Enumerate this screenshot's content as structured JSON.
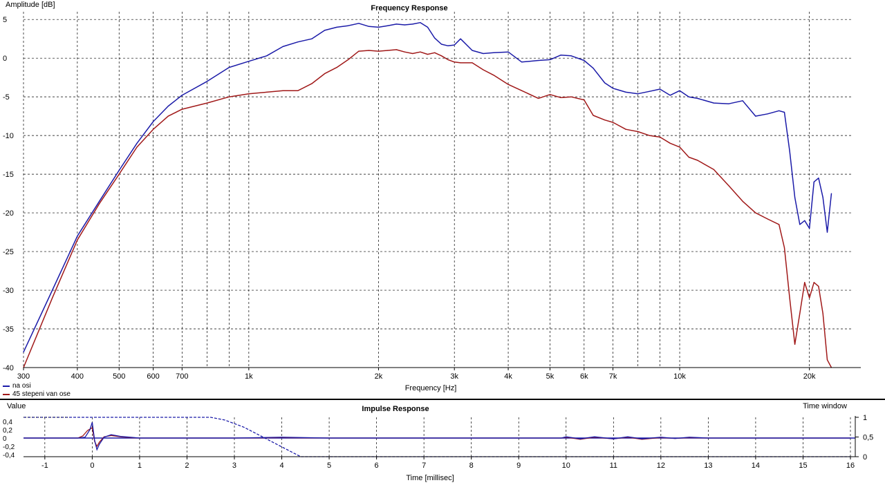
{
  "frequency_chart": {
    "title": "Frequency Response",
    "ylabel": "Amplitude [dB]",
    "xlabel": "Frequency [Hz]",
    "colors": {
      "grid": "#000000",
      "series_0": "#1a1aa8",
      "series_1": "#a01818"
    }
  },
  "impulse_chart": {
    "title": "Impulse Response",
    "ylabel": "Value",
    "xlabel": "Time [millisec]",
    "window_label": "Time window"
  },
  "legend": [
    {
      "name": "na osi",
      "color": "#1a1aa8"
    },
    {
      "name": "45 stepeni van ose",
      "color": "#a01818"
    }
  ],
  "chart_data": [
    {
      "type": "line",
      "title": "Frequency Response",
      "xlabel": "Frequency [Hz]",
      "ylabel": "Amplitude [dB]",
      "xscale": "log",
      "xlim": [
        300,
        24000
      ],
      "ylim": [
        -40,
        6
      ],
      "x_ticks": [
        {
          "v": 300,
          "label": "300"
        },
        {
          "v": 400,
          "label": "400"
        },
        {
          "v": 500,
          "label": "500"
        },
        {
          "v": 600,
          "label": "600"
        },
        {
          "v": 700,
          "label": "700"
        },
        {
          "v": 1000,
          "label": "1k"
        },
        {
          "v": 2000,
          "label": "2k"
        },
        {
          "v": 3000,
          "label": "3k"
        },
        {
          "v": 4000,
          "label": "4k"
        },
        {
          "v": 5000,
          "label": "5k"
        },
        {
          "v": 6000,
          "label": "6k"
        },
        {
          "v": 7000,
          "label": "7k"
        },
        {
          "v": 10000,
          "label": "10k"
        },
        {
          "v": 20000,
          "label": "20k"
        }
      ],
      "minor_x": [
        800,
        900,
        8000,
        9000
      ],
      "y_ticks": [
        5,
        0,
        -5,
        -10,
        -15,
        -20,
        -25,
        -30,
        -35,
        -40
      ],
      "grid": true,
      "legend": "bottom-left",
      "series": [
        {
          "name": "na osi",
          "x": [
            300,
            350,
            400,
            450,
            500,
            550,
            600,
            650,
            700,
            800,
            900,
            1000,
            1100,
            1200,
            1300,
            1400,
            1500,
            1600,
            1700,
            1800,
            1900,
            2000,
            2100,
            2200,
            2300,
            2400,
            2500,
            2600,
            2700,
            2800,
            2900,
            3000,
            3100,
            3300,
            3500,
            3700,
            4000,
            4300,
            4700,
            5000,
            5300,
            5600,
            6000,
            6300,
            6700,
            7000,
            7500,
            8000,
            8500,
            9000,
            9500,
            10000,
            10500,
            11000,
            12000,
            13000,
            14000,
            15000,
            16000,
            17000,
            17500,
            18000,
            18500,
            19000,
            19500,
            20000,
            20500,
            21000,
            21500,
            22000,
            22500
          ],
          "values": [
            -38,
            -30,
            -23,
            -18.5,
            -14.5,
            -11,
            -8.2,
            -6.2,
            -4.8,
            -3,
            -1.2,
            -0.4,
            0.3,
            1.5,
            2.1,
            2.5,
            3.6,
            4,
            4.2,
            4.5,
            4.1,
            4,
            4.2,
            4.4,
            4.3,
            4.4,
            4.6,
            4,
            2.6,
            1.8,
            1.6,
            1.7,
            2.5,
            1,
            0.6,
            0.7,
            0.8,
            -0.5,
            -0.3,
            -0.2,
            0.4,
            0.3,
            -0.3,
            -1.3,
            -3.2,
            -3.9,
            -4.4,
            -4.6,
            -4.3,
            -4,
            -4.8,
            -4.2,
            -5,
            -5.2,
            -5.8,
            -5.9,
            -5.5,
            -7.5,
            -7.2,
            -6.8,
            -7,
            -12,
            -18,
            -21.5,
            -21,
            -22,
            -16,
            -15.5,
            -18,
            -22.5,
            -17.5
          ]
        },
        {
          "name": "45 stepeni van ose",
          "x": [
            300,
            350,
            400,
            450,
            500,
            550,
            600,
            650,
            700,
            800,
            900,
            1000,
            1100,
            1200,
            1300,
            1400,
            1500,
            1600,
            1700,
            1800,
            1900,
            2000,
            2100,
            2200,
            2300,
            2400,
            2500,
            2600,
            2700,
            2800,
            2900,
            3000,
            3100,
            3300,
            3500,
            3700,
            4000,
            4300,
            4700,
            5000,
            5300,
            5600,
            6000,
            6300,
            6700,
            7000,
            7500,
            8000,
            8500,
            9000,
            9500,
            10000,
            10500,
            11000,
            12000,
            13000,
            14000,
            15000,
            16000,
            17000,
            17500,
            18000,
            18500,
            19000,
            19500,
            20000,
            20500,
            21000,
            21500,
            22000,
            22500
          ],
          "values": [
            -40,
            -31,
            -23.5,
            -18.8,
            -15,
            -11.5,
            -9.2,
            -7.5,
            -6.6,
            -5.8,
            -5,
            -4.6,
            -4.4,
            -4.2,
            -4.2,
            -3.3,
            -2,
            -1.2,
            -0.2,
            0.9,
            1,
            0.9,
            1,
            1.1,
            0.8,
            0.6,
            0.8,
            0.5,
            0.7,
            0.3,
            -0.2,
            -0.5,
            -0.6,
            -0.6,
            -1.5,
            -2.2,
            -3.4,
            -4.2,
            -5.2,
            -4.7,
            -5.1,
            -5,
            -5.4,
            -7.4,
            -8,
            -8.3,
            -9.2,
            -9.5,
            -10,
            -10.2,
            -11,
            -11.5,
            -12.8,
            -13.2,
            -14.4,
            -16.5,
            -18.5,
            -20,
            -20.8,
            -21.5,
            -24.5,
            -31,
            -37,
            -33,
            -29,
            -31,
            -29,
            -29.5,
            -33,
            -39,
            -40
          ]
        }
      ]
    },
    {
      "type": "line",
      "title": "Impulse Response",
      "xlabel": "Time [millisec]",
      "ylabel": "Value",
      "xlim": [
        -1.45,
        16
      ],
      "ylim": [
        -0.45,
        0.5
      ],
      "x_ticks": [
        -1,
        0,
        1,
        2,
        3,
        4,
        5,
        6,
        7,
        8,
        9,
        10,
        11,
        12,
        13,
        14,
        15,
        16
      ],
      "y_ticks": [
        {
          "v": 0.4,
          "label": "0,4"
        },
        {
          "v": 0.2,
          "label": "0,2"
        },
        {
          "v": 0,
          "label": "0"
        },
        {
          "v": -0.2,
          "label": "-0,2"
        },
        {
          "v": -0.4,
          "label": "-0,4"
        }
      ],
      "right_axis": {
        "label": "Time window",
        "range": [
          0,
          1
        ],
        "ticks": [
          {
            "v": 1,
            "label": "1"
          },
          {
            "v": 0.5,
            "label": "0,5"
          },
          {
            "v": 0,
            "label": "0"
          }
        ]
      },
      "grid": true,
      "series": [
        {
          "name": "na osi",
          "x": [
            -1.45,
            -0.3,
            -0.15,
            -0.05,
            0,
            0.05,
            0.1,
            0.15,
            0.25,
            0.4,
            0.6,
            0.8,
            1,
            1.5,
            2,
            3,
            4,
            5,
            6,
            7,
            8,
            9,
            9.9,
            10,
            10.3,
            10.6,
            11,
            11.3,
            11.6,
            12,
            12.3,
            12.6,
            13,
            14,
            15,
            16
          ],
          "values": [
            0,
            0,
            0.02,
            0.2,
            0.38,
            -0.05,
            -0.28,
            -0.15,
            0.02,
            0.08,
            0.04,
            0.02,
            0,
            0,
            0,
            0,
            0.02,
            0,
            0,
            0,
            0,
            0,
            0,
            0.03,
            -0.02,
            0.03,
            -0.02,
            0.03,
            -0.02,
            0.02,
            -0.01,
            0.02,
            0,
            0,
            0,
            0
          ]
        },
        {
          "name": "45 stepeni van ose",
          "x": [
            -1.45,
            -0.3,
            -0.2,
            -0.1,
            0,
            0.05,
            0.1,
            0.15,
            0.25,
            0.4,
            0.6,
            0.8,
            1,
            1.5,
            2,
            3,
            4,
            5,
            6,
            7,
            8,
            9,
            9.9,
            10,
            10.3,
            10.6,
            11,
            11.3,
            11.6,
            12,
            12.3,
            12.6,
            13,
            14,
            15,
            16
          ],
          "values": [
            0,
            0,
            0.05,
            0.18,
            0.25,
            -0.08,
            -0.2,
            -0.1,
            0.03,
            0.06,
            0.03,
            0.01,
            0,
            0,
            0,
            0,
            0.01,
            0,
            0,
            0,
            0,
            0,
            0,
            0.02,
            -0.03,
            0.02,
            -0.02,
            0.02,
            -0.03,
            0.01,
            -0.01,
            0.01,
            0,
            0,
            0,
            0
          ]
        },
        {
          "name": "Time window",
          "axis": "right",
          "x": [
            -1.45,
            -0.5,
            0,
            2.5,
            2.8,
            3.2,
            3.6,
            4,
            4.4,
            16
          ],
          "values": [
            1,
            1,
            1,
            1,
            0.93,
            0.75,
            0.5,
            0.25,
            0,
            0
          ]
        }
      ]
    }
  ]
}
